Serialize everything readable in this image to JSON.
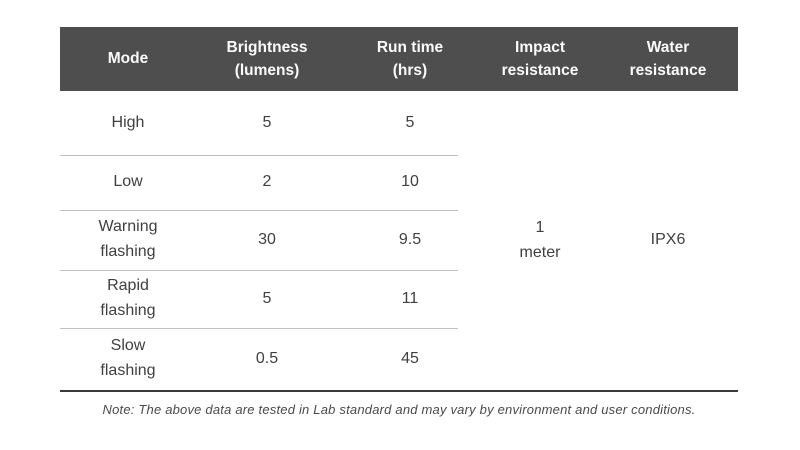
{
  "table": {
    "columns": [
      {
        "label": "Mode"
      },
      {
        "label": "Brightness\n(lumens)"
      },
      {
        "label": "Run time\n(hrs)"
      },
      {
        "label": "Impact\nresistance"
      },
      {
        "label": "Water\nresistance"
      }
    ],
    "rows": [
      {
        "mode": "High",
        "brightness": "5",
        "run_time": "5"
      },
      {
        "mode": "Low",
        "brightness": "2",
        "run_time": "10"
      },
      {
        "mode": "Warning\nflashing",
        "brightness": "30",
        "run_time": "9.5"
      },
      {
        "mode": "Rapid\nflashing",
        "brightness": "5",
        "run_time": "11"
      },
      {
        "mode": "Slow\nflashing",
        "brightness": "0.5",
        "run_time": "45"
      }
    ],
    "impact_resistance": "1\nmeter",
    "water_resistance": "IPX6"
  },
  "note": "Note: The above data are tested in Lab standard and may vary by environment and user conditions.",
  "colors": {
    "header_bg": "#4e4e4e",
    "header_text": "#fafafa",
    "body_text": "#404040",
    "row_divider": "#c2c2c2",
    "bottom_rule": "#3a3a3a",
    "note_text": "#4a4a4a"
  },
  "chart_data": {
    "type": "table",
    "title": "",
    "columns": [
      "Mode",
      "Brightness (lumens)",
      "Run time (hrs)",
      "Impact resistance",
      "Water resistance"
    ],
    "rows": [
      [
        "High",
        5,
        5,
        "1 meter",
        "IPX6"
      ],
      [
        "Low",
        2,
        10,
        "1 meter",
        "IPX6"
      ],
      [
        "Warning flashing",
        30,
        9.5,
        "1 meter",
        "IPX6"
      ],
      [
        "Rapid flashing",
        5,
        11,
        "1 meter",
        "IPX6"
      ],
      [
        "Slow flashing",
        0.5,
        45,
        "1 meter",
        "IPX6"
      ]
    ],
    "merged_cells": [
      {
        "column": "Impact resistance",
        "value": "1 meter",
        "spans_rows": [
          0,
          4
        ]
      },
      {
        "column": "Water resistance",
        "value": "IPX6",
        "spans_rows": [
          0,
          4
        ]
      }
    ],
    "footnote": "Note: The above data are tested in Lab standard and may vary by environment and user conditions."
  }
}
